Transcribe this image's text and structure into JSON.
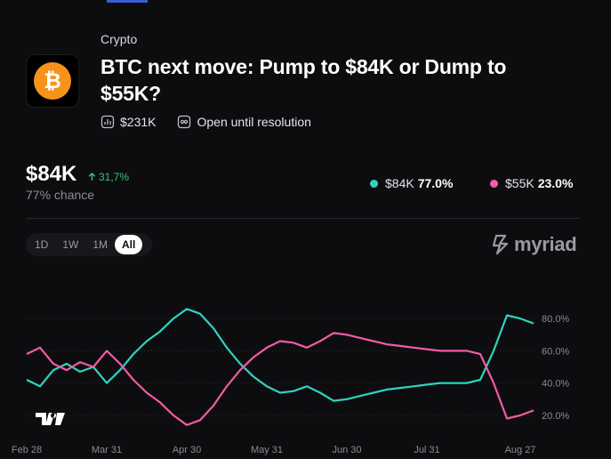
{
  "market": {
    "category": "Crypto",
    "title": "BTC next move: Pump to $84K or Dump to $55K?",
    "volume": "$231K",
    "status": "Open until resolution",
    "icon": "bitcoin-icon"
  },
  "outcome": {
    "price": "$84K",
    "change": "31,7%",
    "chance": "77% chance"
  },
  "legend": [
    {
      "label": "$84K",
      "value": "77.0%",
      "color": "#2dd4bf"
    },
    {
      "label": "$55K",
      "value": "23.0%",
      "color": "#f25ba6"
    }
  ],
  "ranges": [
    "1D",
    "1W",
    "1M",
    "All"
  ],
  "active_range": "All",
  "brand": "myriad",
  "colors": {
    "accent": "#3b5bdb",
    "up": "#2dd4bf",
    "down": "#f25ba6",
    "positive": "#36c37a"
  },
  "chart_data": {
    "type": "line",
    "x": [
      "Feb 28",
      "Mar 5",
      "Mar 10",
      "Mar 15",
      "Mar 20",
      "Mar 25",
      "Mar 31",
      "Apr 5",
      "Apr 10",
      "Apr 15",
      "Apr 20",
      "Apr 25",
      "Apr 30",
      "May 5",
      "May 10",
      "May 15",
      "May 20",
      "May 25",
      "May 31",
      "Jun 5",
      "Jun 10",
      "Jun 15",
      "Jun 20",
      "Jun 25",
      "Jun 30",
      "Jul 5",
      "Jul 10",
      "Jul 15",
      "Jul 20",
      "Jul 25",
      "Jul 31",
      "Aug 5",
      "Aug 10",
      "Aug 15",
      "Aug 20",
      "Aug 23",
      "Aug 25",
      "Aug 27",
      "Aug 29"
    ],
    "series": [
      {
        "name": "$84K",
        "values": [
          42,
          38,
          48,
          52,
          47,
          50,
          40,
          48,
          58,
          66,
          72,
          80,
          86,
          83,
          74,
          62,
          52,
          44,
          38,
          34,
          35,
          38,
          34,
          29,
          30,
          32,
          34,
          36,
          37,
          38,
          39,
          40,
          40,
          40,
          42,
          60,
          82,
          80,
          77
        ]
      },
      {
        "name": "$55K",
        "values": [
          58,
          62,
          52,
          48,
          53,
          50,
          60,
          52,
          42,
          34,
          28,
          20,
          14,
          17,
          26,
          38,
          48,
          56,
          62,
          66,
          65,
          62,
          66,
          71,
          70,
          68,
          66,
          64,
          63,
          62,
          61,
          60,
          60,
          60,
          58,
          40,
          18,
          20,
          23
        ]
      }
    ],
    "xticks": [
      "Feb 28",
      "Mar 31",
      "Apr 30",
      "May 31",
      "Jun 30",
      "Jul 31",
      "Aug 27"
    ],
    "yticks": [
      "20.0%",
      "40.0%",
      "60.0%",
      "80.0%"
    ],
    "ylim": [
      10,
      90
    ],
    "grid": "horizontal-dotted",
    "yaxis": "right"
  }
}
